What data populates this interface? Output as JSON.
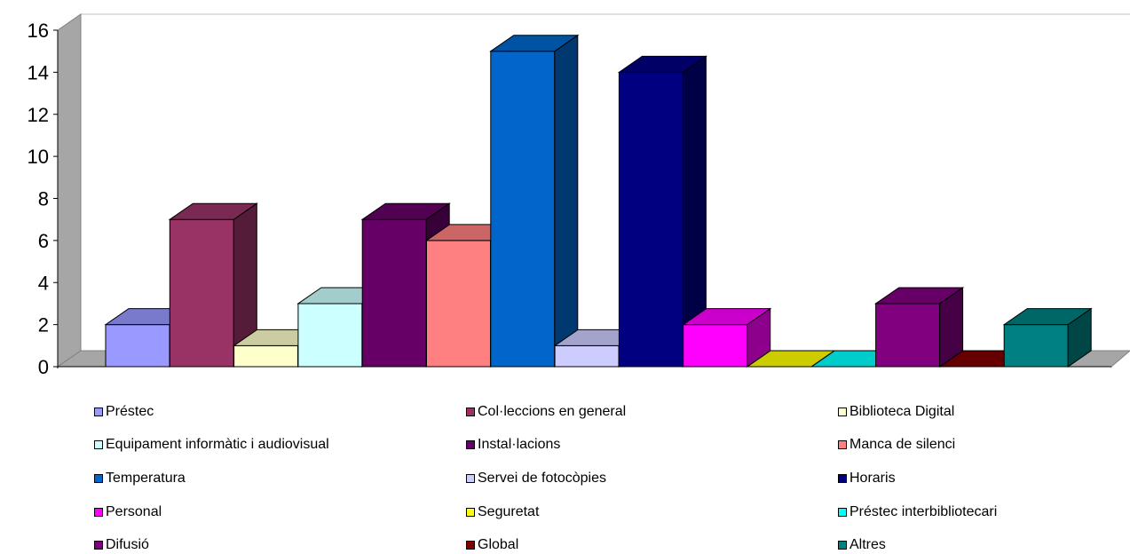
{
  "chart_data": {
    "type": "bar",
    "title": "",
    "xlabel": "",
    "ylabel": "",
    "ylim": [
      0,
      16
    ],
    "yticks": [
      "0",
      "2",
      "4",
      "6",
      "8",
      "10",
      "12",
      "14",
      "16"
    ],
    "grid": false,
    "legend_position": "bottom",
    "categories": [
      "Préstec",
      "Col·leccions en general",
      "Biblioteca Digital",
      "Equipament informàtic i audiovisual",
      "Instal·lacions",
      "Manca de silenci",
      "Temperatura",
      "Servei de fotocòpies",
      "Horaris",
      "Personal",
      "Seguretat",
      "Préstec interbibliotecari",
      "Difusió",
      "Global",
      "Altres"
    ],
    "values": [
      2,
      7,
      1,
      3,
      7,
      6,
      15,
      1,
      14,
      2,
      0,
      0,
      3,
      0,
      2
    ],
    "colors": [
      "#9999ff",
      "#993366",
      "#ffffcc",
      "#ccffff",
      "#660066",
      "#ff8080",
      "#0066cc",
      "#ccccff",
      "#000080",
      "#ff00ff",
      "#ffff00",
      "#00ffff",
      "#800080",
      "#800000",
      "#008080"
    ]
  }
}
